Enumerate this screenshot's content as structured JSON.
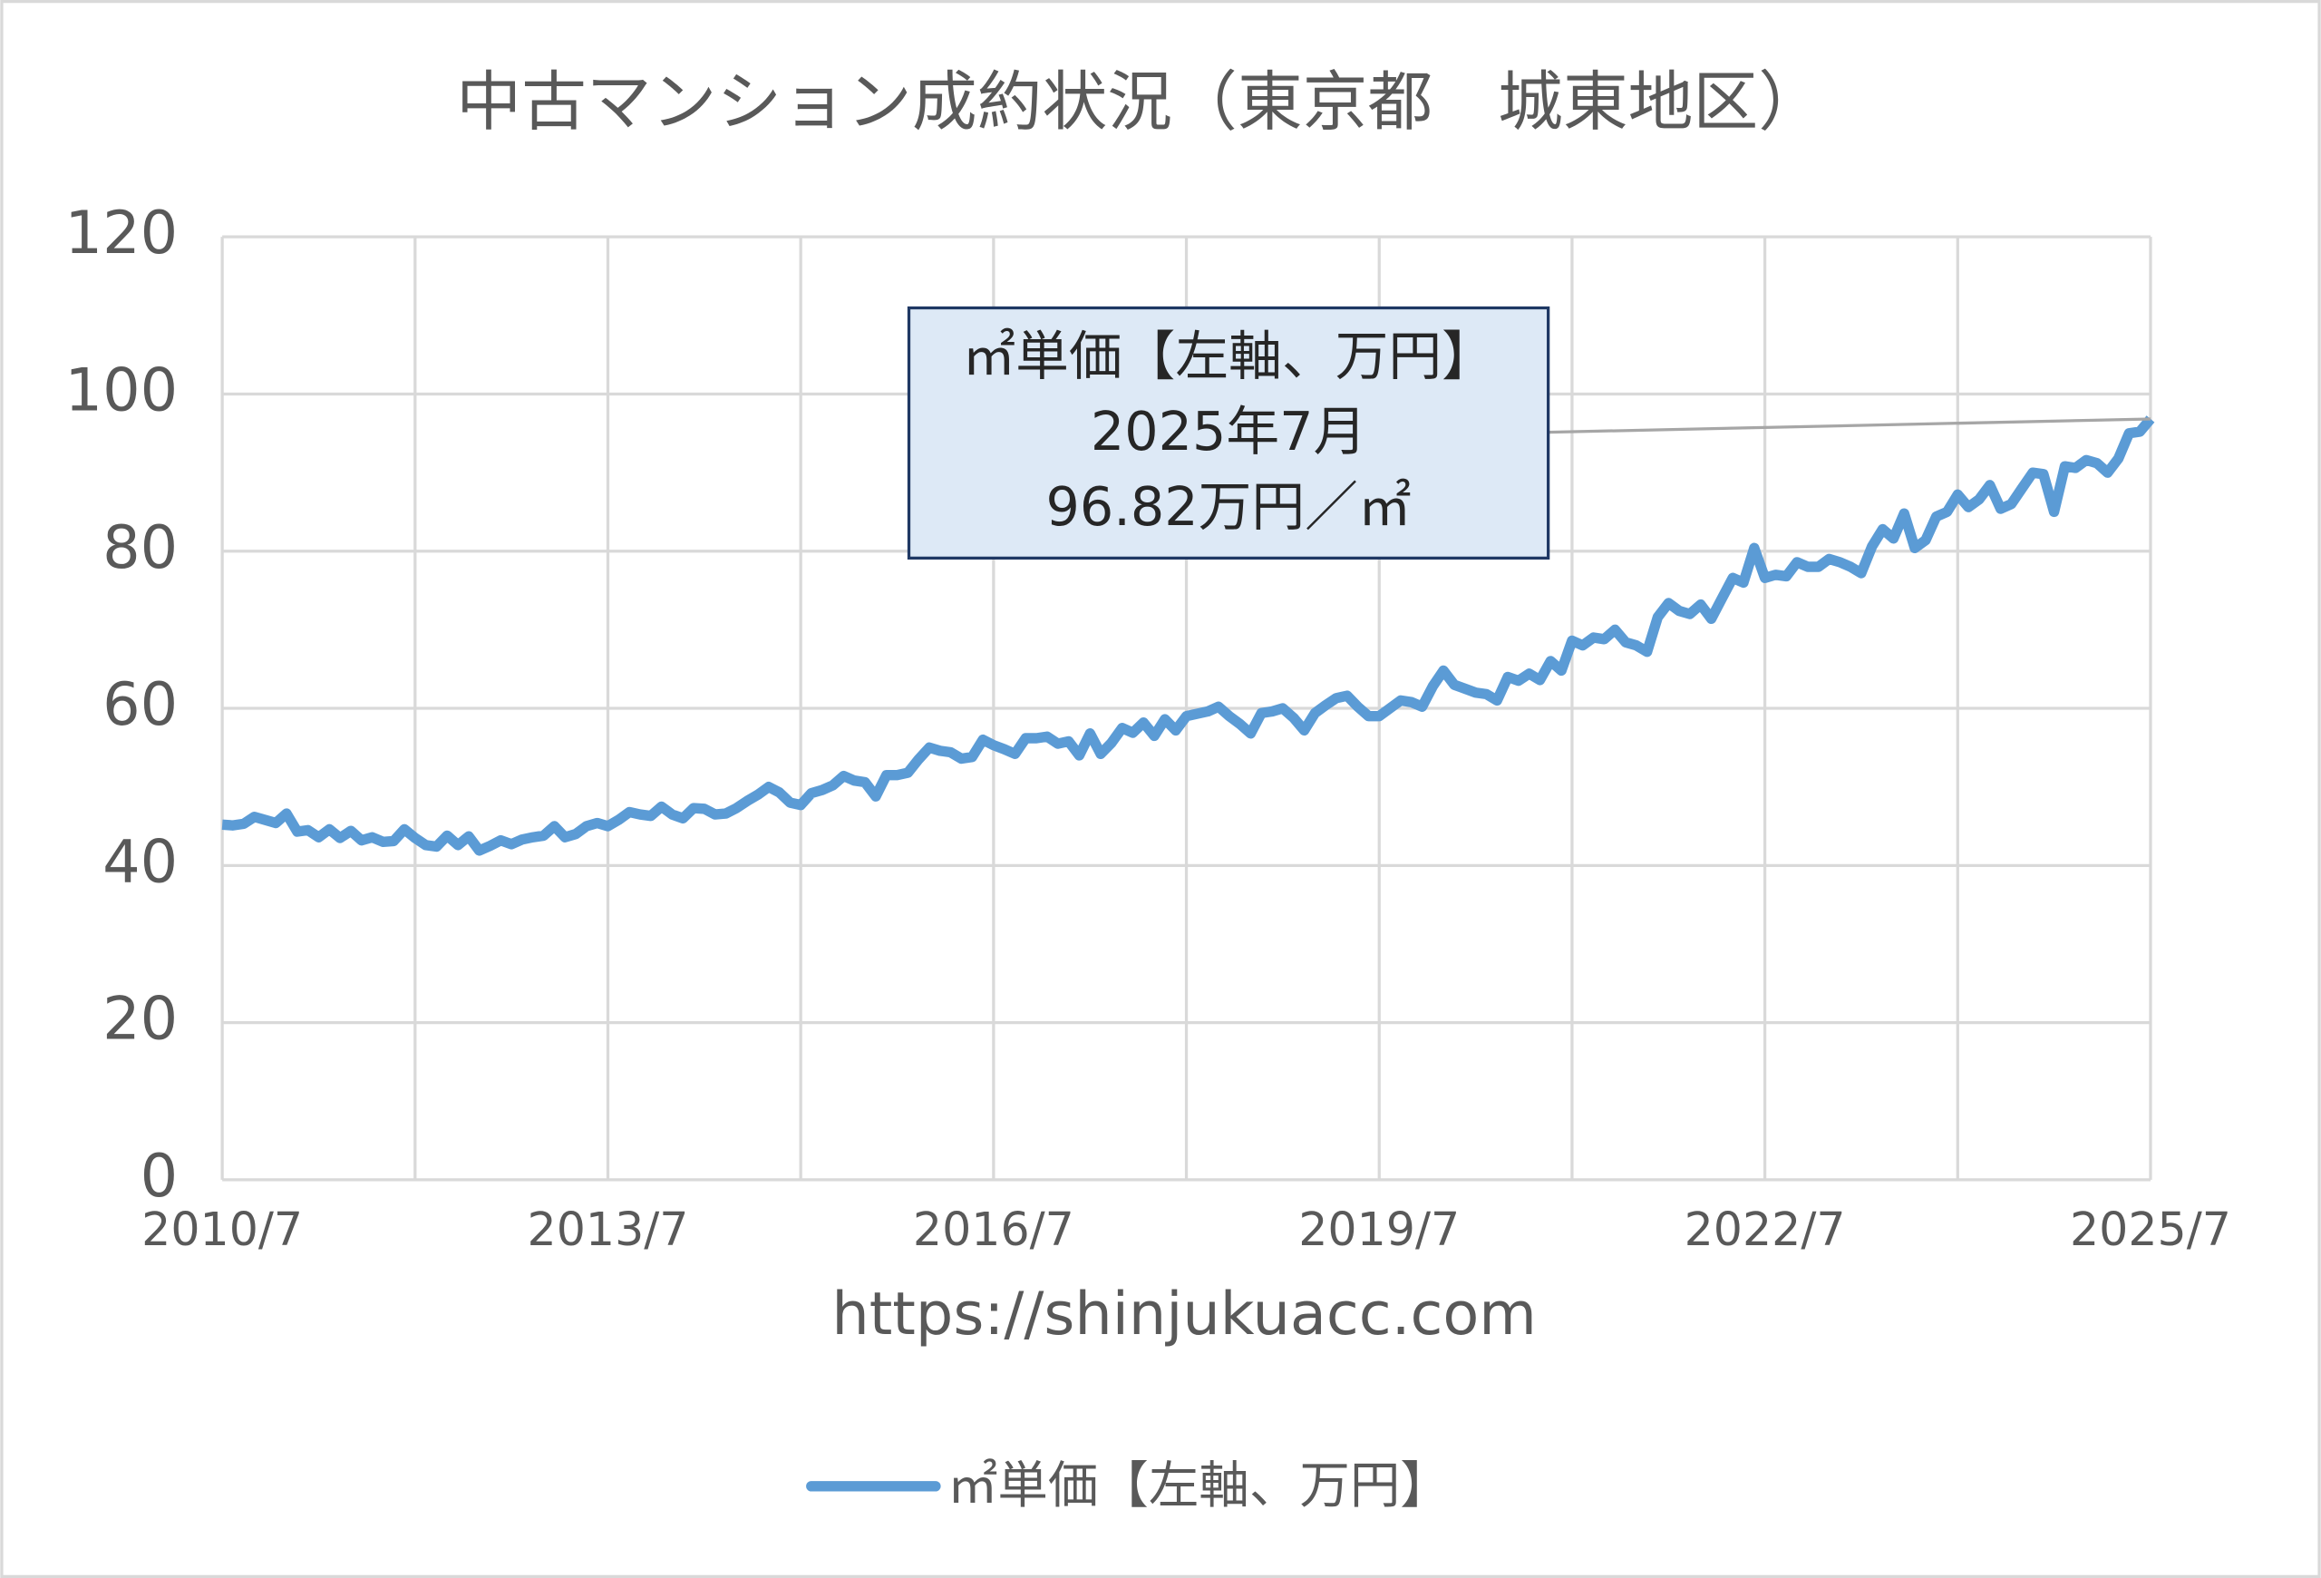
{
  "chart_data": {
    "type": "line",
    "title": "中古マンション成約状況（東京都　城東地区）",
    "source": "https://shinjukuacc.com",
    "annotation": [
      "㎡単価【左軸、万円】",
      "2025年7月",
      "96.82万円／㎡"
    ],
    "categories": [
      "2010/7",
      null,
      null,
      null,
      null,
      null,
      null,
      null,
      null,
      null,
      null,
      null,
      null,
      null,
      null,
      null,
      null,
      null,
      null,
      null,
      null,
      null,
      null,
      null,
      null,
      null,
      null,
      null,
      null,
      null,
      null,
      null,
      null,
      null,
      null,
      null,
      "2013/7",
      null,
      null,
      null,
      null,
      null,
      null,
      null,
      null,
      null,
      null,
      null,
      null,
      null,
      null,
      null,
      null,
      null,
      null,
      null,
      null,
      null,
      null,
      null,
      null,
      null,
      null,
      null,
      null,
      null,
      null,
      null,
      null,
      null,
      null,
      null,
      "2016/7",
      null,
      null,
      null,
      null,
      null,
      null,
      null,
      null,
      null,
      null,
      null,
      null,
      null,
      null,
      null,
      null,
      null,
      null,
      null,
      null,
      null,
      null,
      null,
      null,
      null,
      null,
      null,
      null,
      null,
      null,
      null,
      null,
      null,
      null,
      null,
      "2019/7",
      null,
      null,
      null,
      null,
      null,
      null,
      null,
      null,
      null,
      null,
      null,
      null,
      null,
      null,
      null,
      null,
      null,
      null,
      null,
      null,
      null,
      null,
      null,
      null,
      null,
      null,
      null,
      null,
      null,
      null,
      null,
      null,
      null,
      null,
      null,
      "2022/7",
      null,
      null,
      null,
      null,
      null,
      null,
      null,
      null,
      null,
      null,
      null,
      null,
      null,
      null,
      null,
      null,
      null,
      null,
      null,
      null,
      null,
      null,
      null,
      null,
      null,
      null,
      null,
      null,
      null,
      null,
      null,
      null,
      null,
      null,
      null,
      "2025/7"
    ],
    "series": [
      {
        "name": "㎡単価【左軸、万円】",
        "color": "#5b9bd5",
        "values": [
          45.2,
          45.1,
          45.3,
          46.2,
          45.8,
          45.4,
          46.6,
          44.3,
          44.5,
          43.6,
          44.6,
          43.5,
          44.4,
          43.2,
          43.6,
          43.0,
          43.1,
          44.6,
          43.5,
          42.6,
          42.4,
          43.8,
          42.6,
          43.7,
          41.9,
          42.5,
          43.2,
          42.7,
          43.3,
          43.6,
          43.8,
          45.0,
          43.6,
          44.0,
          45.0,
          45.4,
          45.0,
          45.8,
          46.8,
          46.5,
          46.3,
          47.5,
          46.5,
          46.0,
          47.3,
          47.2,
          46.5,
          46.6,
          47.3,
          48.2,
          49.0,
          50.0,
          49.3,
          48.0,
          47.7,
          49.2,
          49.6,
          50.2,
          51.4,
          50.8,
          50.6,
          48.8,
          51.5,
          51.5,
          51.8,
          53.5,
          55.0,
          54.6,
          54.4,
          53.6,
          53.8,
          56.0,
          55.3,
          54.8,
          54.2,
          56.2,
          56.2,
          56.4,
          55.5,
          55.8,
          54.0,
          56.8,
          54.2,
          55.6,
          57.5,
          56.9,
          58.2,
          56.5,
          58.6,
          57.2,
          59.0,
          59.3,
          59.6,
          60.2,
          59.0,
          58.0,
          56.8,
          59.4,
          59.6,
          60.0,
          58.8,
          57.2,
          59.4,
          60.4,
          61.3,
          61.6,
          60.2,
          59.0,
          59.0,
          60.0,
          61.0,
          60.8,
          60.2,
          62.8,
          64.8,
          63.0,
          62.5,
          62.0,
          61.8,
          61.0,
          64.0,
          63.5,
          64.4,
          63.6,
          66.0,
          64.8,
          68.6,
          68.0,
          69.0,
          68.8,
          70.0,
          68.4,
          68.0,
          67.2,
          71.6,
          73.4,
          72.4,
          72.0,
          73.2,
          71.4,
          74.0,
          76.6,
          76.0,
          80.4,
          76.6,
          77.0,
          76.8,
          78.6,
          78.0,
          78.0,
          79.0,
          78.6,
          78.0,
          77.2,
          80.6,
          82.8,
          81.6,
          84.8,
          80.4,
          81.4,
          84.4,
          85.0,
          87.2,
          85.6,
          86.6,
          88.4,
          85.4,
          86.0,
          88.0,
          90.0,
          89.8,
          85.0,
          90.8,
          90.6,
          91.6,
          91.2,
          90.0,
          91.8,
          95.0,
          95.2,
          96.82
        ]
      }
    ],
    "ylim": [
      0,
      120
    ],
    "yticks": [
      0,
      20,
      40,
      60,
      80,
      100,
      120
    ],
    "grid": true,
    "legend": "bottom"
  }
}
